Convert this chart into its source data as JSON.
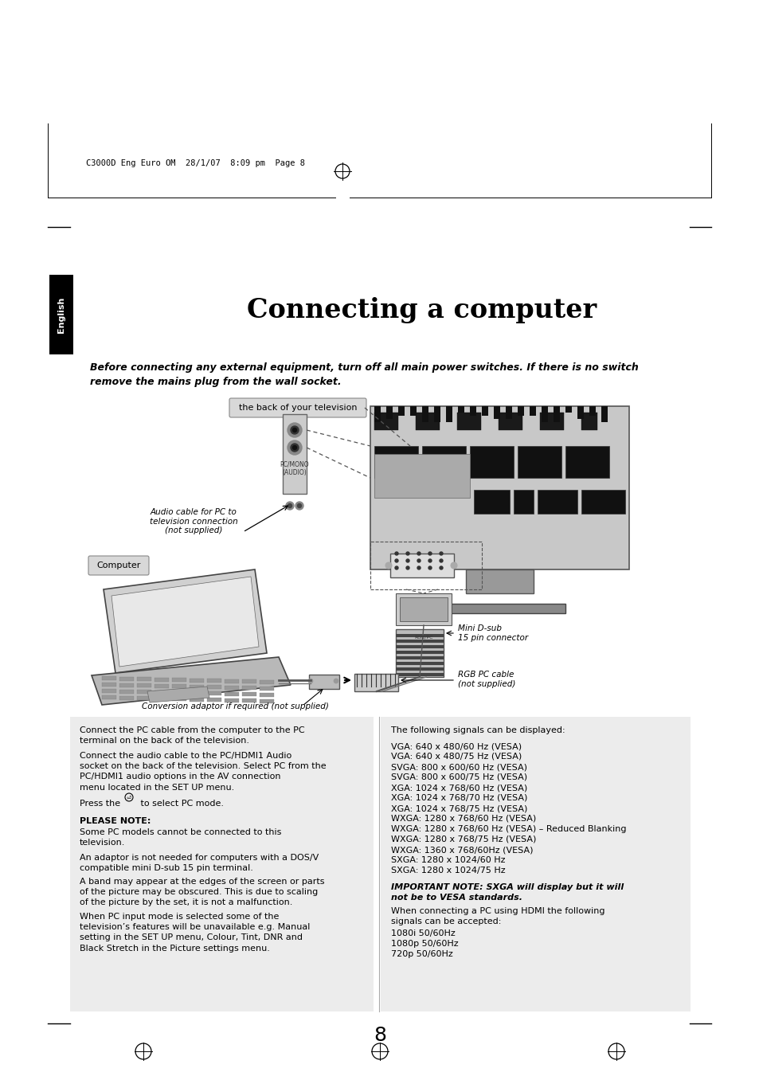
{
  "bg_color": "#ffffff",
  "title": "Connecting a computer",
  "header_text": "C3000D Eng Euro OM  28/1/07  8:09 pm  Page 8",
  "english_label": "English",
  "warning_line1": "Before connecting any external equipment, turn off all main power switches. If there is no switch",
  "warning_line2": "remove the mains plug from the wall socket.",
  "diagram_label_tv": "the back of your television",
  "diagram_label_computer": "Computer",
  "diagram_label_audio": "Audio cable for PC to\ntelevision connection\n(not supplied)",
  "diagram_label_minidsub": "Mini D-sub\n15 pin connector",
  "diagram_label_rgb": "RGB PC cable\n(not supplied)",
  "diagram_label_conversion": "Conversion adaptor if required (not supplied)",
  "diagram_label_pcmono": "PC/MONO\n(AUDIO)",
  "right_col_header": "The following signals can be displayed:",
  "right_col_signals": [
    "VGA: 640 x 480/60 Hz (VESA)",
    "VGA: 640 x 480/75 Hz (VESA)",
    "SVGA: 800 x 600/60 Hz (VESA)",
    "SVGA: 800 x 600/75 Hz (VESA)",
    "XGA: 1024 x 768/60 Hz (VESA)",
    "XGA: 1024 x 768/70 Hz (VESA)",
    "XGA: 1024 x 768/75 Hz (VESA)",
    "WXGA: 1280 x 768/60 Hz (VESA)",
    "WXGA: 1280 x 768/60 Hz (VESA) – Reduced Blanking",
    "WXGA: 1280 x 768/75 Hz (VESA)",
    "WXGA: 1360 x 768/60Hz (VESA)",
    "SXGA: 1280 x 1024/60 Hz",
    "SXGA: 1280 x 1024/75 Hz"
  ],
  "right_col_important": "IMPORTANT NOTE: SXGA will display but it will\nnot be to VESA standards.",
  "right_col_hdmi_header": "When connecting a PC using HDMI the following\nsignals can be accepted:",
  "right_col_hdmi_signals": [
    "1080i 50/60Hz",
    "1080p 50/60Hz",
    "720p 50/60Hz"
  ],
  "page_number": "8",
  "left_col_p1": "Connect the PC cable from the computer to the PC\nterminal on the back of the television.",
  "left_col_p2a": "Connect the audio cable to the PC/HDMI1 Audio\nsocket on the back of the television. Select ",
  "left_col_p2b": "PC",
  "left_col_p2c": " from the\n",
  "left_col_p2d": "PC/HDMI1 audio",
  "left_col_p2e": " options in the ",
  "left_col_p2f": "AV connection",
  "left_col_p2g": "\nmenu located in the ",
  "left_col_p2h": "SET UP",
  "left_col_p2i": " menu.",
  "left_col_p3a": "Press the ",
  "left_col_p3b": " to select PC mode.",
  "left_col_pn": "PLEASE NOTE:",
  "left_col_p5": "Some PC models cannot be connected to this\ntelevision.",
  "left_col_p6": "An adaptor is not needed for computers with a DOS/V\ncompatible mini D-sub 15 pin terminal.",
  "left_col_p7": "A band may appear at the edges of the screen or parts\nof the picture may be obscured. This is due to scaling\nof the picture by the set, it is not a malfunction.",
  "left_col_p8a": "When PC input mode is selected some of the\ntelevision’s features will be unavailable e.g. ",
  "left_col_p8b": "Manual\nsetting",
  "left_col_p8c": " in the ",
  "left_col_p8d": "SET UP",
  "left_col_p8e": " menu, ",
  "left_col_p8f": "Colour",
  "left_col_p8g": ", ",
  "left_col_p8h": "Tint",
  "left_col_p8i": ", ",
  "left_col_p8j": "DNR",
  "left_col_p8k": " and\n",
  "left_col_p8l": "Black Stretch",
  "left_col_p8m": " in the ",
  "left_col_p8n": "Picture settings",
  "left_col_p8o": " menu."
}
